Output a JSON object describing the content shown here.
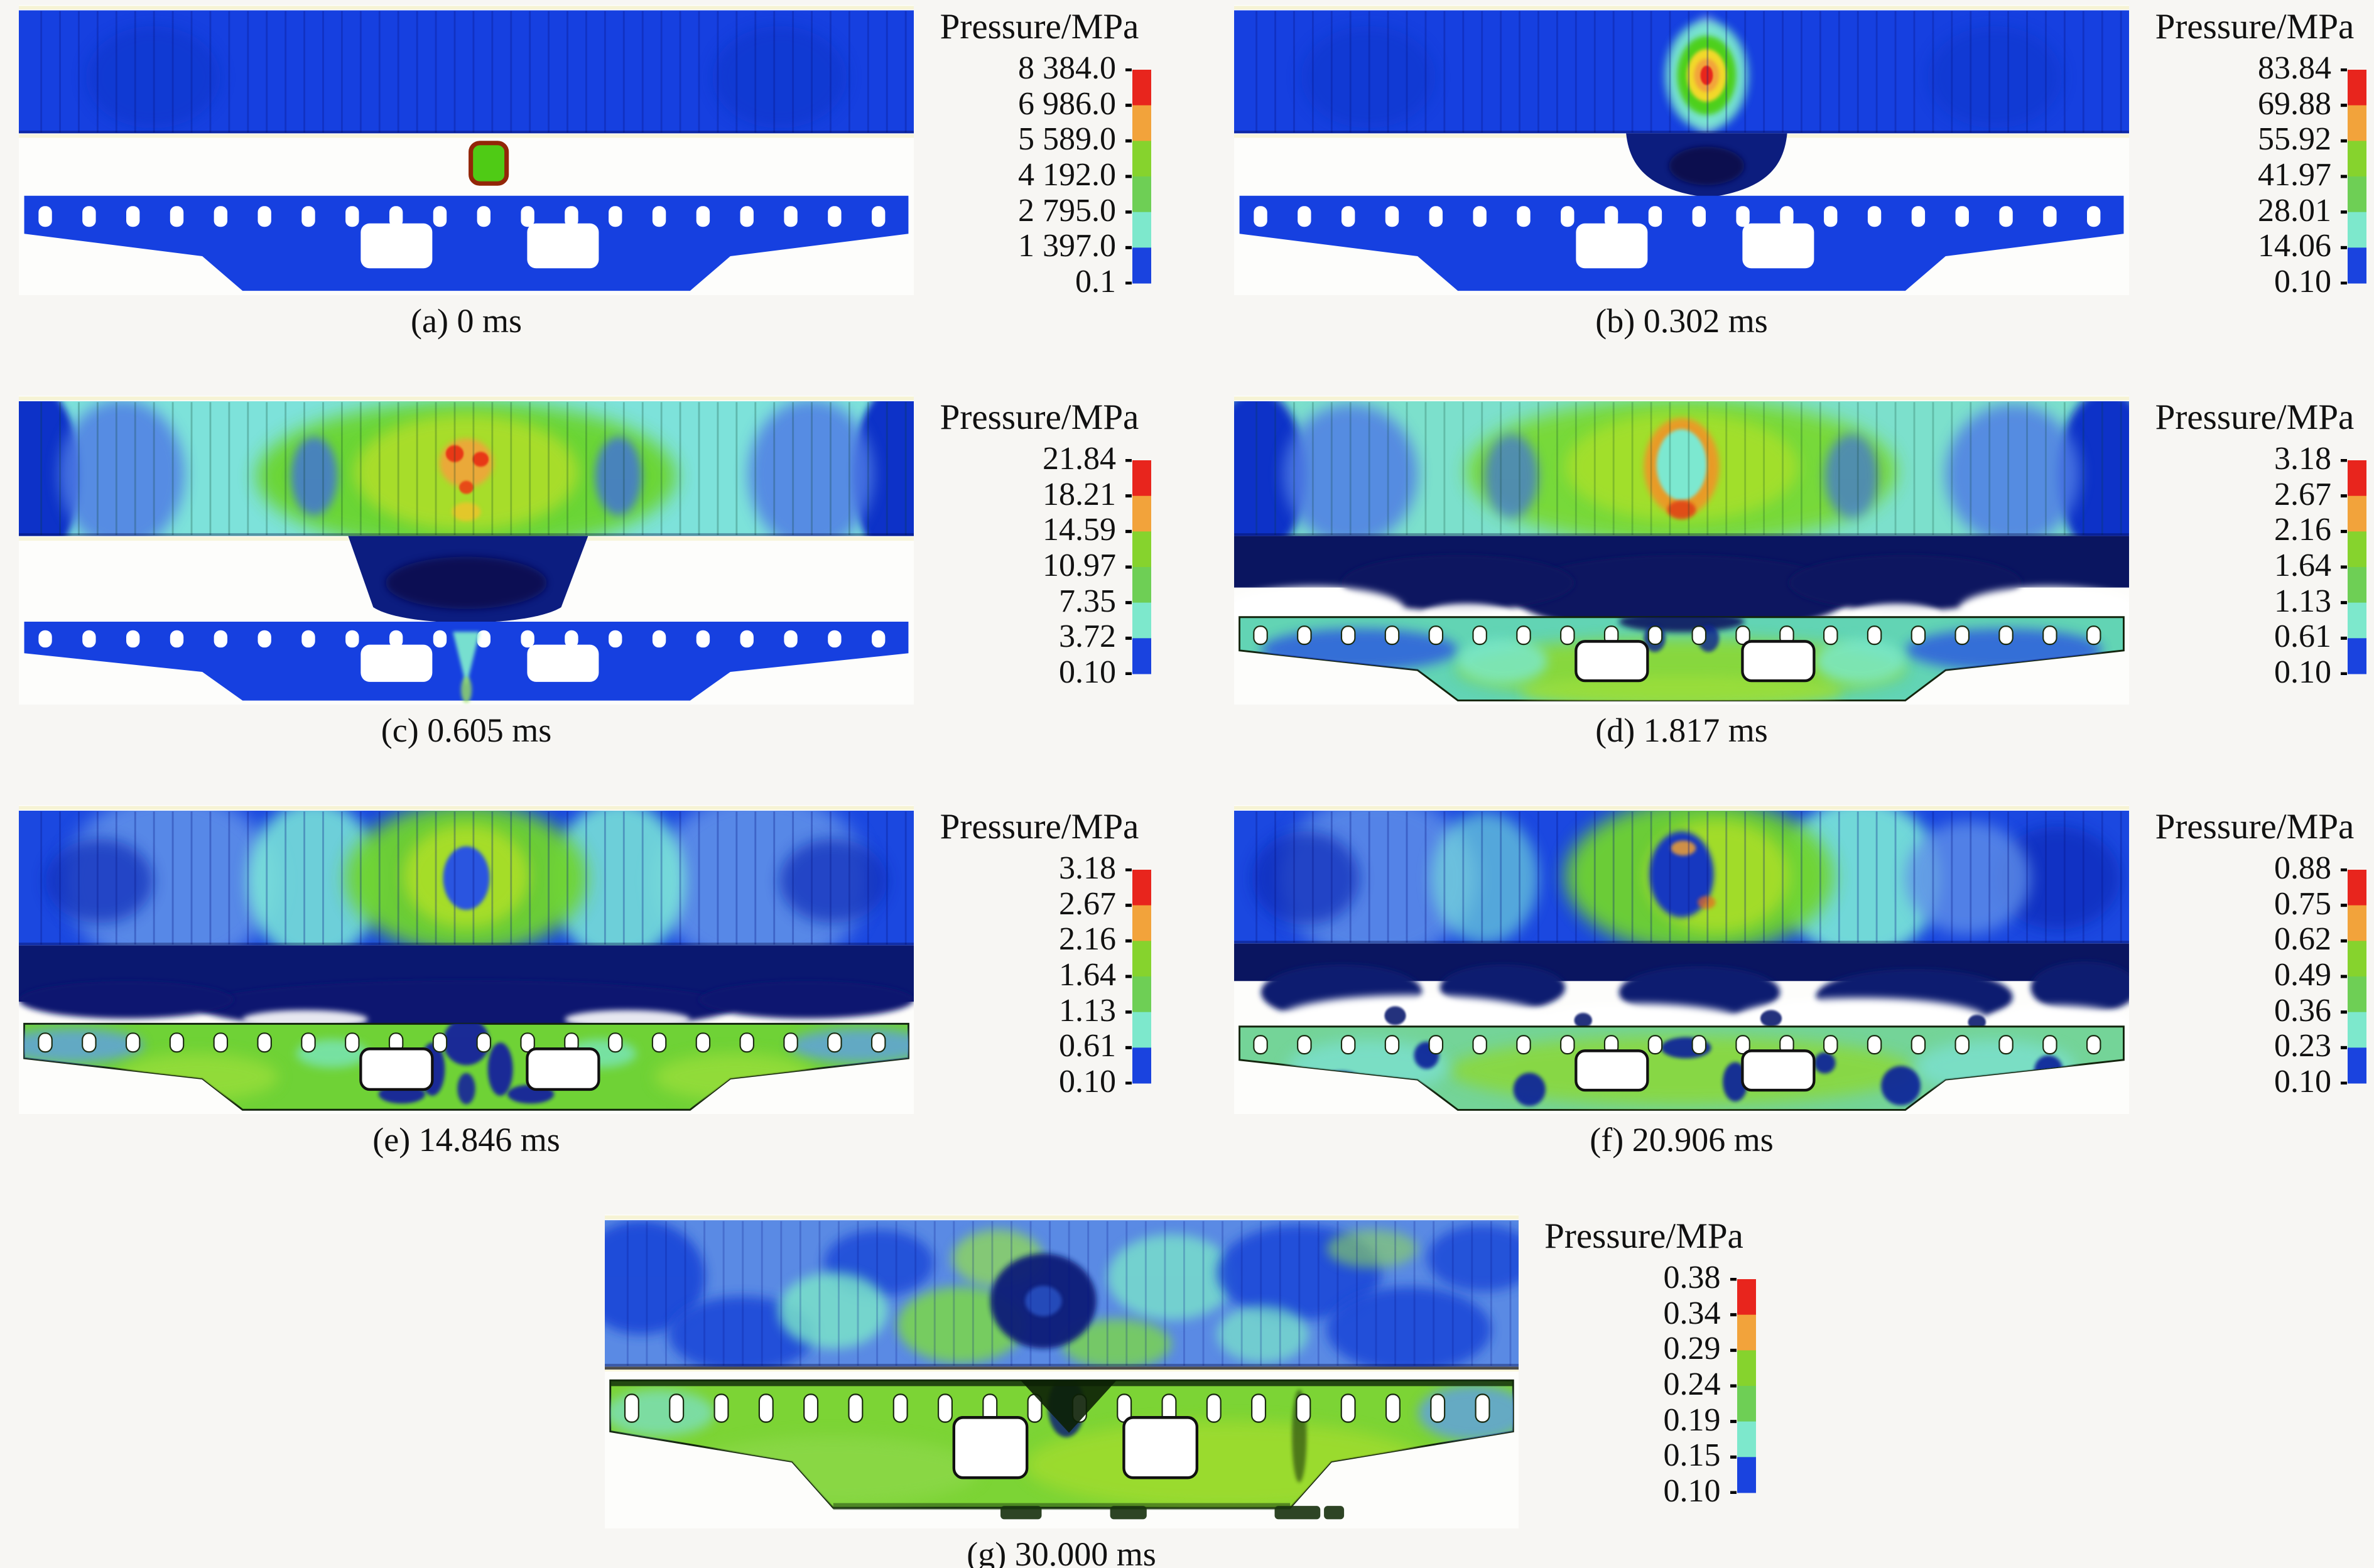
{
  "legend_title": "Pressure/MPa",
  "colorbar_colors": [
    "#e8251d",
    "#f2a33b",
    "#86d32d",
    "#6ecf55",
    "#7de8cc",
    "#1a43df"
  ],
  "panels": [
    {
      "key": "a",
      "caption": "(a) 0 ms",
      "legend_title": "Pressure/MPa",
      "ticks": [
        "8 384.0",
        "6 986.0",
        "5 589.0",
        "4 192.0",
        "2 795.0",
        "1 397.0",
        "0.1"
      ]
    },
    {
      "key": "b",
      "caption": "(b) 0.302 ms",
      "legend_title": "Pressure/MPa",
      "ticks": [
        "83.84",
        "69.88",
        "55.92",
        "41.97",
        "28.01",
        "14.06",
        "0.10"
      ]
    },
    {
      "key": "c",
      "caption": "(c) 0.605 ms",
      "legend_title": "Pressure/MPa",
      "ticks": [
        "21.84",
        "18.21",
        "14.59",
        "10.97",
        "7.35",
        "3.72",
        "0.10"
      ]
    },
    {
      "key": "d",
      "caption": "(d) 1.817 ms",
      "legend_title": "Pressure/MPa",
      "ticks": [
        "3.18",
        "2.67",
        "2.16",
        "1.64",
        "1.13",
        "0.61",
        "0.10"
      ]
    },
    {
      "key": "e",
      "caption": "(e) 14.846 ms",
      "legend_title": "Pressure/MPa",
      "ticks": [
        "3.18",
        "2.67",
        "2.16",
        "1.64",
        "1.13",
        "0.61",
        "0.10"
      ]
    },
    {
      "key": "f",
      "caption": "(f) 20.906 ms",
      "legend_title": "Pressure/MPa",
      "ticks": [
        "0.88",
        "0.75",
        "0.62",
        "0.49",
        "0.36",
        "0.23",
        "0.10"
      ]
    },
    {
      "key": "g",
      "caption": "(g) 30.000 ms",
      "legend_title": "Pressure/MPa",
      "ticks": [
        "0.38",
        "0.34",
        "0.29",
        "0.24",
        "0.19",
        "0.15",
        "0.10"
      ]
    }
  ],
  "chart_data": {
    "type": "heatmap",
    "title": "",
    "subplot_layout": [
      [
        "a",
        "b"
      ],
      [
        "c",
        "d"
      ],
      [
        "e",
        "f"
      ],
      [
        "g"
      ]
    ],
    "colorbar_title": "Pressure/MPa",
    "colorbar_colors_top_to_bottom": [
      "#e8251d",
      "#f2a33b",
      "#86d32d",
      "#6ecf55",
      "#7de8cc",
      "#1a43df"
    ],
    "legend_position": "right of each panel",
    "panels": [
      {
        "label": "(a)",
        "time_ms": 0,
        "colorbar_tick_values": [
          8384.0,
          6986.0,
          5589.0,
          4192.0,
          2795.0,
          1397.0,
          0.1
        ]
      },
      {
        "label": "(b)",
        "time_ms": 0.302,
        "colorbar_tick_values": [
          83.84,
          69.88,
          55.92,
          41.97,
          28.01,
          14.06,
          0.1
        ]
      },
      {
        "label": "(c)",
        "time_ms": 0.605,
        "colorbar_tick_values": [
          21.84,
          18.21,
          14.59,
          10.97,
          7.35,
          3.72,
          0.1
        ]
      },
      {
        "label": "(d)",
        "time_ms": 1.817,
        "colorbar_tick_values": [
          3.18,
          2.67,
          2.16,
          1.64,
          1.13,
          0.61,
          0.1
        ]
      },
      {
        "label": "(e)",
        "time_ms": 14.846,
        "colorbar_tick_values": [
          3.18,
          2.67,
          2.16,
          1.64,
          1.13,
          0.61,
          0.1
        ]
      },
      {
        "label": "(f)",
        "time_ms": 20.906,
        "colorbar_tick_values": [
          0.88,
          0.75,
          0.62,
          0.49,
          0.36,
          0.23,
          0.1
        ]
      },
      {
        "label": "(g)",
        "time_ms": 30.0,
        "colorbar_tick_values": [
          0.38,
          0.34,
          0.29,
          0.24,
          0.19,
          0.15,
          0.1
        ]
      }
    ]
  }
}
